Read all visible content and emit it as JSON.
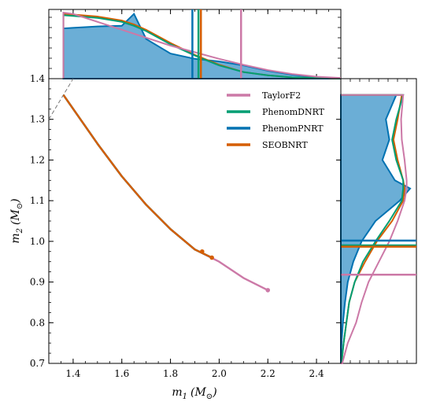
{
  "chart_data": {
    "type": "line",
    "xlabel": "m_1 (M_⊙)",
    "ylabel": "m_2 (M_⊙)",
    "xlabel_parts": {
      "sym": "m",
      "sub": "1",
      "unit": "(M",
      "unit_sub": "⊙",
      "close": ")"
    },
    "ylabel_parts": {
      "sym": "m",
      "sub": "2",
      "unit": "(M",
      "unit_sub": "⊙",
      "close": ")"
    },
    "xlim": [
      1.3,
      2.5
    ],
    "ylim": [
      0.7,
      1.4
    ],
    "xticks": [
      "1.4",
      "1.6",
      "1.8",
      "2.0",
      "2.2",
      "2.4"
    ],
    "yticks": [
      "0.7",
      "0.8",
      "0.9",
      "1.0",
      "1.1",
      "1.2",
      "1.3",
      "1.4"
    ],
    "legend_position": "top-right",
    "series": [
      {
        "name": "TaylorF2",
        "color": "#cc79a7",
        "x": [
          1.36,
          1.5,
          1.6,
          1.7,
          1.8,
          1.9,
          2.0,
          2.1,
          2.2
        ],
        "y": [
          1.36,
          1.24,
          1.16,
          1.09,
          1.03,
          0.98,
          0.95,
          0.91,
          0.88
        ]
      },
      {
        "name": "PhenomDNRT",
        "color": "#009e73",
        "x": [
          1.36,
          1.5,
          1.6,
          1.7,
          1.8,
          1.9,
          1.97
        ],
        "y": [
          1.36,
          1.24,
          1.16,
          1.09,
          1.03,
          0.98,
          0.96
        ]
      },
      {
        "name": "PhenomPNRT",
        "color": "#0072b2",
        "x": [
          1.36,
          1.5,
          1.6,
          1.7,
          1.8,
          1.9,
          1.97
        ],
        "y": [
          1.36,
          1.24,
          1.16,
          1.09,
          1.03,
          0.98,
          0.96
        ]
      },
      {
        "name": "SEOBNRT",
        "color": "#d55e00",
        "x": [
          1.36,
          1.5,
          1.6,
          1.7,
          1.8,
          1.9,
          1.97
        ],
        "y": [
          1.36,
          1.24,
          1.16,
          1.09,
          1.03,
          0.98,
          0.96
        ]
      }
    ],
    "markers": [
      {
        "x": 1.93,
        "y": 0.975,
        "color": "#d55e00"
      },
      {
        "x": 1.97,
        "y": 0.96,
        "color": "#d55e00"
      },
      {
        "x": 2.2,
        "y": 0.88,
        "color": "#cc79a7"
      }
    ],
    "equal_mass_line": {
      "style": "dashed",
      "color": "#777777",
      "x": [
        1.3,
        1.4
      ],
      "y": [
        1.3,
        1.4
      ]
    },
    "marginal_m1": {
      "x": [
        1.36,
        1.4,
        1.5,
        1.6,
        1.65,
        1.7,
        1.8,
        1.9,
        2.0,
        2.1,
        2.2,
        2.3,
        2.4,
        2.5
      ],
      "posterior_filled": {
        "color": "#6baed6",
        "edge": "#0072b2",
        "density": [
          0.76,
          0.77,
          0.79,
          0.8,
          0.98,
          0.6,
          0.38,
          0.3,
          0.26,
          0.2,
          0.12,
          0.06,
          0.02,
          0.0
        ]
      },
      "TaylorF2": [
        1.0,
        0.98,
        0.86,
        0.74,
        0.68,
        0.62,
        0.5,
        0.4,
        0.3,
        0.21,
        0.13,
        0.07,
        0.03,
        0.01
      ],
      "PhenomDNRT": [
        0.96,
        0.95,
        0.92,
        0.86,
        0.8,
        0.72,
        0.52,
        0.35,
        0.2,
        0.1,
        0.05,
        0.02,
        0.01,
        0.0
      ],
      "SEOBNRT": [
        0.98,
        0.97,
        0.94,
        0.88,
        0.82,
        0.74,
        0.54,
        0.36,
        0.21,
        0.1,
        0.05,
        0.02,
        0.01,
        0.0
      ],
      "prior_bounds": [
        {
          "x": 1.89,
          "color": "#0072b2"
        },
        {
          "x": 1.915,
          "color": "#009e73"
        },
        {
          "x": 1.925,
          "color": "#d55e00"
        },
        {
          "x": 2.09,
          "color": "#cc79a7"
        }
      ]
    },
    "marginal_m2": {
      "y": [
        0.7,
        0.75,
        0.8,
        0.85,
        0.9,
        0.95,
        1.0,
        1.05,
        1.1,
        1.13,
        1.15,
        1.2,
        1.25,
        1.3,
        1.36
      ],
      "posterior_filled": {
        "color": "#6baed6",
        "edge": "#0072b2",
        "density": [
          0.0,
          0.01,
          0.03,
          0.06,
          0.1,
          0.18,
          0.3,
          0.5,
          0.85,
          1.0,
          0.78,
          0.6,
          0.7,
          0.65,
          0.8
        ]
      },
      "TaylorF2": [
        0.02,
        0.1,
        0.22,
        0.3,
        0.4,
        0.55,
        0.7,
        0.82,
        0.92,
        0.95,
        0.95,
        0.92,
        0.88,
        0.87,
        0.9
      ],
      "PhenomDNRT": [
        0.01,
        0.04,
        0.08,
        0.12,
        0.2,
        0.32,
        0.5,
        0.7,
        0.88,
        0.9,
        0.9,
        0.8,
        0.74,
        0.8,
        0.9
      ],
      "SEOBNRT": [
        0.01,
        0.04,
        0.08,
        0.12,
        0.2,
        0.35,
        0.52,
        0.74,
        0.9,
        0.92,
        0.9,
        0.82,
        0.76,
        0.82,
        0.88
      ],
      "prior_bounds": [
        {
          "y": 1.002,
          "color": "#0072b2"
        },
        {
          "y": 0.99,
          "color": "#009e73"
        },
        {
          "y": 0.987,
          "color": "#d55e00"
        },
        {
          "y": 0.918,
          "color": "#cc79a7"
        }
      ]
    }
  }
}
